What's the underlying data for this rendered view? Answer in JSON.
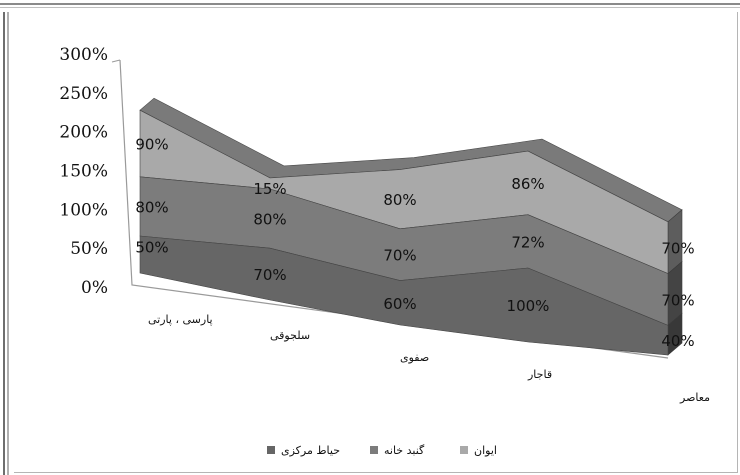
{
  "chart_data": {
    "type": "area",
    "stacked": true,
    "three_d": true,
    "categories": [
      "پارسی ، پارتی",
      "سلجوقی",
      "صفوی",
      "قاجار",
      "معاصر"
    ],
    "y_ticks": [
      "0%",
      "50%",
      "100%",
      "150%",
      "200%",
      "250%",
      "300%"
    ],
    "ylim": [
      0,
      300
    ],
    "series": [
      {
        "name": "حیاط مرکزی",
        "values": [
          50,
          70,
          60,
          100,
          40
        ],
        "labels": [
          "50%",
          "70%",
          "60%",
          "100%",
          "40%"
        ],
        "color": "#666666"
      },
      {
        "name": "گنبد خانه",
        "values": [
          80,
          80,
          70,
          72,
          70
        ],
        "labels": [
          "80%",
          "80%",
          "70%",
          "72%",
          "70%"
        ],
        "color": "#7c7c7c"
      },
      {
        "name": "ایوان",
        "values": [
          90,
          15,
          80,
          86,
          70
        ],
        "labels": [
          "90%",
          "15%",
          "80%",
          "86%",
          "70%"
        ],
        "color": "#a9a9a9"
      }
    ],
    "legend_position": "bottom",
    "grid": false
  }
}
